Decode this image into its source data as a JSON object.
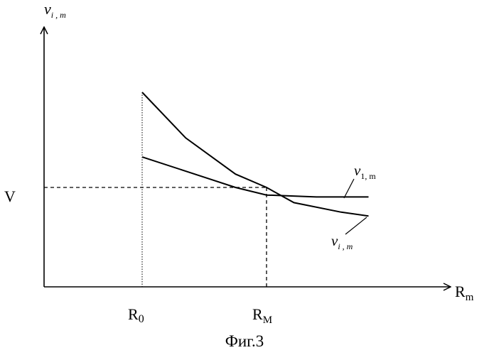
{
  "figure": {
    "caption": "Фиг.3"
  },
  "axes": {
    "y_label": {
      "base": "v",
      "subscript": "i , m"
    },
    "x_label": {
      "base": "R",
      "subscript": "m"
    },
    "y_tick": "V",
    "x_ticks": [
      {
        "base": "R",
        "subscript": "0"
      },
      {
        "base": "R",
        "subscript": "M"
      }
    ]
  },
  "curves": [
    {
      "id": "v1m",
      "label": {
        "base": "v",
        "subscript": "1, m"
      },
      "points": [
        [
          0.0,
          0.66
        ],
        [
          0.33,
          0.59
        ],
        [
          0.75,
          0.5
        ],
        [
          1.0,
          0.46
        ],
        [
          1.4,
          0.45
        ],
        [
          1.82,
          0.45
        ]
      ]
    },
    {
      "id": "vim",
      "label": {
        "base": "v",
        "subscript": "i , m"
      },
      "points": [
        [
          0.0,
          1.0
        ],
        [
          0.35,
          0.76
        ],
        [
          0.75,
          0.57
        ],
        [
          1.0,
          0.5
        ],
        [
          1.22,
          0.42
        ],
        [
          1.6,
          0.37
        ],
        [
          1.82,
          0.35
        ]
      ]
    }
  ],
  "reference": {
    "intersection": [
      1.0,
      0.5
    ]
  }
}
